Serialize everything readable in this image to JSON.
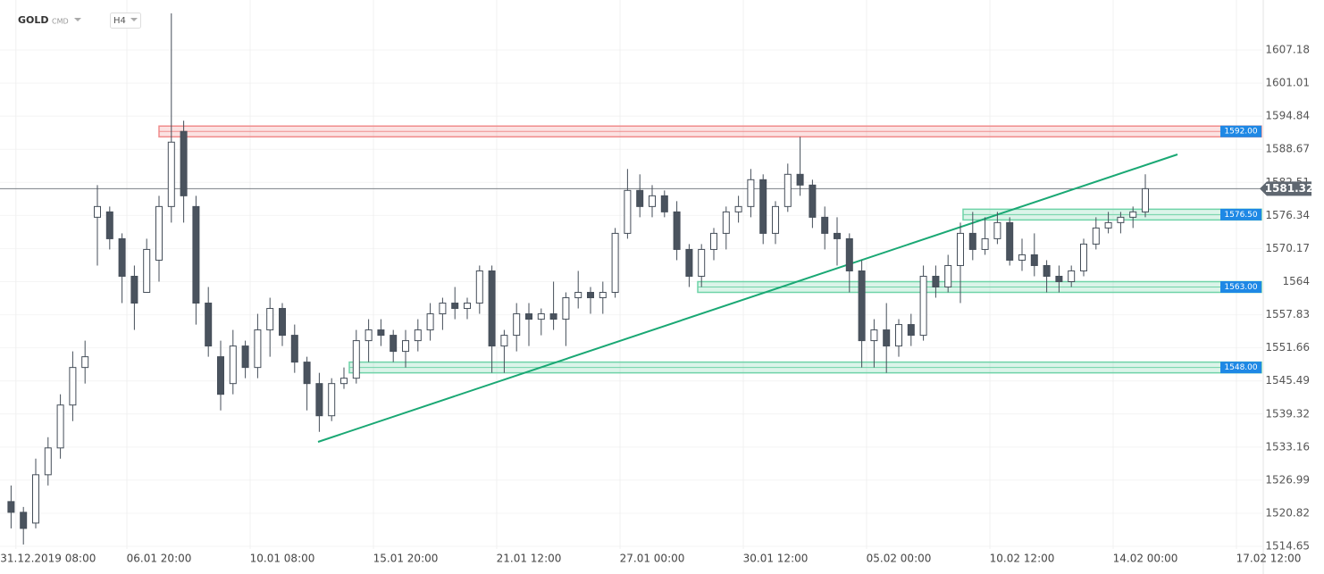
{
  "chart_data": {
    "type": "candlestick",
    "symbol": "GOLD",
    "symbol_type": "CMD",
    "timeframe": "H4",
    "categories": [
      null,
      null,
      null,
      null,
      "31.12.2019 08:00",
      null,
      null,
      null,
      null,
      null,
      null,
      null,
      null,
      "06.01 20:00",
      null,
      null,
      null,
      null,
      null,
      null,
      null,
      null,
      null,
      "10.01 08:00",
      null,
      null,
      null,
      null,
      null,
      null,
      null,
      null,
      null,
      "15.01 20:00",
      null,
      null,
      null,
      null,
      null,
      null,
      null,
      null,
      null,
      "21.01 12:00",
      null,
      null,
      null,
      null,
      null,
      null,
      null,
      null,
      null,
      "27.01 00:00",
      null,
      null,
      null,
      null,
      null,
      null,
      null,
      null,
      null,
      "30.01 12:00",
      null,
      null,
      null,
      null,
      null,
      null,
      null,
      null,
      null,
      "05.02 00:00",
      null,
      null,
      null,
      null,
      null,
      null,
      null,
      null,
      null,
      "10.02 12:00",
      null,
      null,
      null,
      null,
      null,
      null,
      null,
      null,
      null,
      "14.02 00:00",
      null,
      null,
      null,
      null,
      null,
      null,
      null,
      null,
      null,
      "17.02 12:00"
    ],
    "open": [
      null,
      1523,
      1521,
      1519,
      1528,
      1533,
      1541,
      1548,
      1576,
      1577,
      1572,
      1565,
      1562,
      1568,
      1578,
      1592,
      1578,
      1560,
      1550,
      1545,
      1552,
      1548,
      1555,
      1559,
      1554,
      1549,
      1545,
      1539,
      1545,
      1546,
      1553,
      1555,
      1554,
      1551,
      1553,
      1555,
      1558,
      1560,
      1559,
      1560,
      1566,
      1552,
      1554,
      1558,
      1557,
      1558,
      1557,
      1561,
      1562,
      1561,
      1562,
      1573,
      1581,
      1578,
      1580,
      1577,
      1570,
      1565,
      1570,
      1573,
      1577,
      1578,
      1583,
      1573,
      1578,
      1584,
      1582,
      1576,
      1573,
      1572,
      1566,
      1553,
      1555,
      1552,
      1556,
      1554,
      1565,
      1563,
      1567,
      1573,
      1570,
      1572,
      1575,
      1568,
      1569,
      1567,
      1565,
      1564,
      1566,
      1571,
      1574,
      1575,
      1576,
      1577,
      null,
      null,
      null,
      null,
      null,
      null,
      null,
      null,
      null,
      null
    ],
    "high": [
      null,
      1526,
      1522,
      1531,
      1535,
      1543,
      1551,
      1553,
      1582,
      1578,
      1573,
      1567,
      1572,
      1580,
      1614,
      1594,
      1580,
      1563,
      1553,
      1555,
      1553,
      1558,
      1561,
      1560,
      1556,
      1550,
      1547,
      1546,
      1548,
      1555,
      1557,
      1557,
      1555,
      1555,
      1557,
      1560,
      1561,
      1563,
      1561,
      1567,
      1567,
      1555,
      1560,
      1560,
      1559,
      1564,
      1562,
      1566,
      1563,
      1564,
      1574,
      1585,
      1584,
      1582,
      1581,
      1579,
      1571,
      1571,
      1574,
      1578,
      1580,
      1585,
      1584,
      1579,
      1586,
      1591,
      1583,
      1578,
      1576,
      1573,
      1568,
      1557,
      1560,
      1557,
      1558,
      1567,
      1567,
      1569,
      1575,
      1577,
      1576,
      1577,
      1576,
      1572,
      1573,
      1568,
      1567,
      1567,
      1572,
      1576,
      1577,
      1577,
      1578,
      1584,
      null,
      null,
      null,
      null,
      null,
      null,
      null,
      null,
      null,
      null
    ],
    "low": [
      null,
      1518,
      1515,
      1518,
      1526,
      1531,
      1538,
      1545,
      1567,
      1570,
      1560,
      1555,
      1562,
      1564,
      1575,
      1575,
      1556,
      1550,
      1540,
      1543,
      1546,
      1546,
      1550,
      1552,
      1547,
      1540,
      1536,
      1538,
      1544,
      1545,
      1549,
      1552,
      1549,
      1548,
      1551,
      1553,
      1555,
      1557,
      1557,
      1558,
      1547,
      1547,
      1551,
      1552,
      1554,
      1555,
      1552,
      1559,
      1558,
      1558,
      1561,
      1572,
      1576,
      1576,
      1576,
      1568,
      1563,
      1563,
      1568,
      1570,
      1575,
      1576,
      1571,
      1571,
      1577,
      1580,
      1574,
      1570,
      1567,
      1562,
      1548,
      1548,
      1547,
      1550,
      1552,
      1553,
      1561,
      1562,
      1560,
      1568,
      1569,
      1571,
      1567,
      1566,
      1565,
      1562,
      1562,
      1563,
      1565,
      1570,
      1573,
      1573,
      1574,
      1576,
      null,
      null,
      null,
      null,
      null,
      null,
      null,
      null,
      null,
      null
    ],
    "close": [
      null,
      1521,
      1518,
      1528,
      1533,
      1541,
      1548,
      1550,
      1578,
      1572,
      1565,
      1560,
      1570,
      1578,
      1590,
      1580,
      1560,
      1552,
      1543,
      1552,
      1548,
      1555,
      1559,
      1554,
      1549,
      1545,
      1539,
      1545,
      1546,
      1553,
      1555,
      1554,
      1551,
      1553,
      1555,
      1558,
      1560,
      1559,
      1560,
      1566,
      1552,
      1554,
      1558,
      1557,
      1558,
      1557,
      1561,
      1562,
      1561,
      1562,
      1573,
      1581,
      1578,
      1580,
      1577,
      1570,
      1565,
      1570,
      1573,
      1577,
      1578,
      1583,
      1573,
      1578,
      1584,
      1582,
      1576,
      1573,
      1572,
      1566,
      1553,
      1555,
      1552,
      1556,
      1554,
      1565,
      1563,
      1567,
      1573,
      1570,
      1572,
      1575,
      1568,
      1569,
      1567,
      1565,
      1564,
      1566,
      1571,
      1574,
      1575,
      1576,
      1577,
      1581.32,
      null,
      null,
      null,
      null,
      null,
      null,
      null,
      null,
      null,
      null
    ],
    "up_color": "#ffffff",
    "down_color": "#4a535e",
    "outline_color": "#454e59",
    "ylim": [
      1509.5,
      1616.5
    ],
    "yticks": [
      1607.18,
      1601.01,
      1594.84,
      1588.67,
      1582.51,
      1576.34,
      1570.17,
      1564.0,
      1557.83,
      1551.66,
      1545.49,
      1539.32,
      1533.16,
      1526.99,
      1520.82,
      1514.65
    ],
    "levels": [
      {
        "value": 1592,
        "label": "1592.00",
        "color": "#f08c8c"
      },
      {
        "value": 1576.5,
        "label": "1576.50",
        "color": "#6fd3a8"
      },
      {
        "value": 1563,
        "label": "1563.00",
        "color": "#6fd3a8"
      },
      {
        "value": 1548,
        "label": "1548.00",
        "color": "#6fd3a8"
      }
    ],
    "current_price": 1581.32
  }
}
